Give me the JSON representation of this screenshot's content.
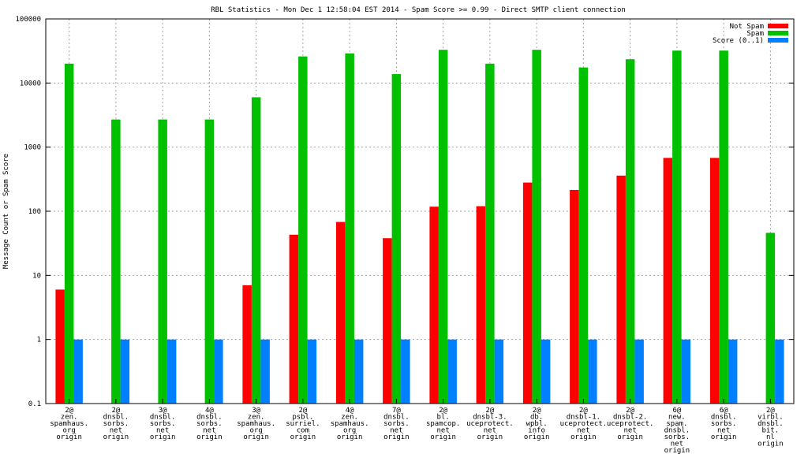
{
  "chart_data": {
    "type": "bar",
    "title": "RBL Statistics - Mon Dec  1 12:58:04 EST 2014 - Spam Score >= 0.99 - Direct SMTP client connection",
    "xlabel": "",
    "ylabel": "Message Count or Spam Score",
    "yscale": "log",
    "ylim": [
      0.1,
      100000
    ],
    "yticks": [
      "0.1",
      "1",
      "10",
      "100",
      "1000",
      "10000",
      "100000"
    ],
    "grid": true,
    "legend_position": "top-right",
    "categories": [
      [
        "2@",
        "zen.",
        "spamhaus.",
        "org",
        "origin"
      ],
      [
        "2@",
        "dnsbl.",
        "sorbs.",
        "net",
        "origin"
      ],
      [
        "3@",
        "dnsbl.",
        "sorbs.",
        "net",
        "origin"
      ],
      [
        "4@",
        "dnsbl.",
        "sorbs.",
        "net",
        "origin"
      ],
      [
        "3@",
        "zen.",
        "spamhaus.",
        "org",
        "origin"
      ],
      [
        "2@",
        "psbl.",
        "surriel.",
        "com",
        "origin"
      ],
      [
        "4@",
        "zen.",
        "spamhaus.",
        "org",
        "origin"
      ],
      [
        "7@",
        "dnsbl.",
        "sorbs.",
        "net",
        "origin"
      ],
      [
        "2@",
        "bl.",
        "spamcop.",
        "net",
        "origin"
      ],
      [
        "2@",
        "dnsbl-3.",
        "uceprotect.",
        "net",
        "origin"
      ],
      [
        "2@",
        "db.",
        "wpbl.",
        "info",
        "origin"
      ],
      [
        "2@",
        "dnsbl-1.",
        "uceprotect.",
        "net",
        "origin"
      ],
      [
        "2@",
        "dnsbl-2.",
        "uceprotect.",
        "net",
        "origin"
      ],
      [
        "6@",
        "new.",
        "spam.",
        "dnsbl.",
        "sorbs.",
        "net",
        "origin"
      ],
      [
        "6@",
        "dnsbl.",
        "sorbs.",
        "net",
        "origin"
      ],
      [
        "2@",
        "virbl.",
        "dnsbl.",
        "bit.",
        "nl",
        "origin"
      ]
    ],
    "series": [
      {
        "name": "Not Spam",
        "color": "#ff0000",
        "values": [
          6,
          null,
          null,
          null,
          7,
          43,
          68,
          38,
          118,
          120,
          280,
          215,
          360,
          680,
          680,
          null
        ]
      },
      {
        "name": "Spam",
        "color": "#00c000",
        "values": [
          20000,
          2700,
          2700,
          2700,
          6000,
          26000,
          29000,
          13800,
          33000,
          20000,
          33000,
          17500,
          23500,
          32000,
          32000,
          46
        ]
      },
      {
        "name": "Score (0..1)",
        "color": "#0080ff",
        "values": [
          1,
          1,
          1,
          1,
          1,
          1,
          1,
          1,
          1,
          1,
          1,
          1,
          1,
          1,
          1,
          1
        ]
      }
    ]
  }
}
